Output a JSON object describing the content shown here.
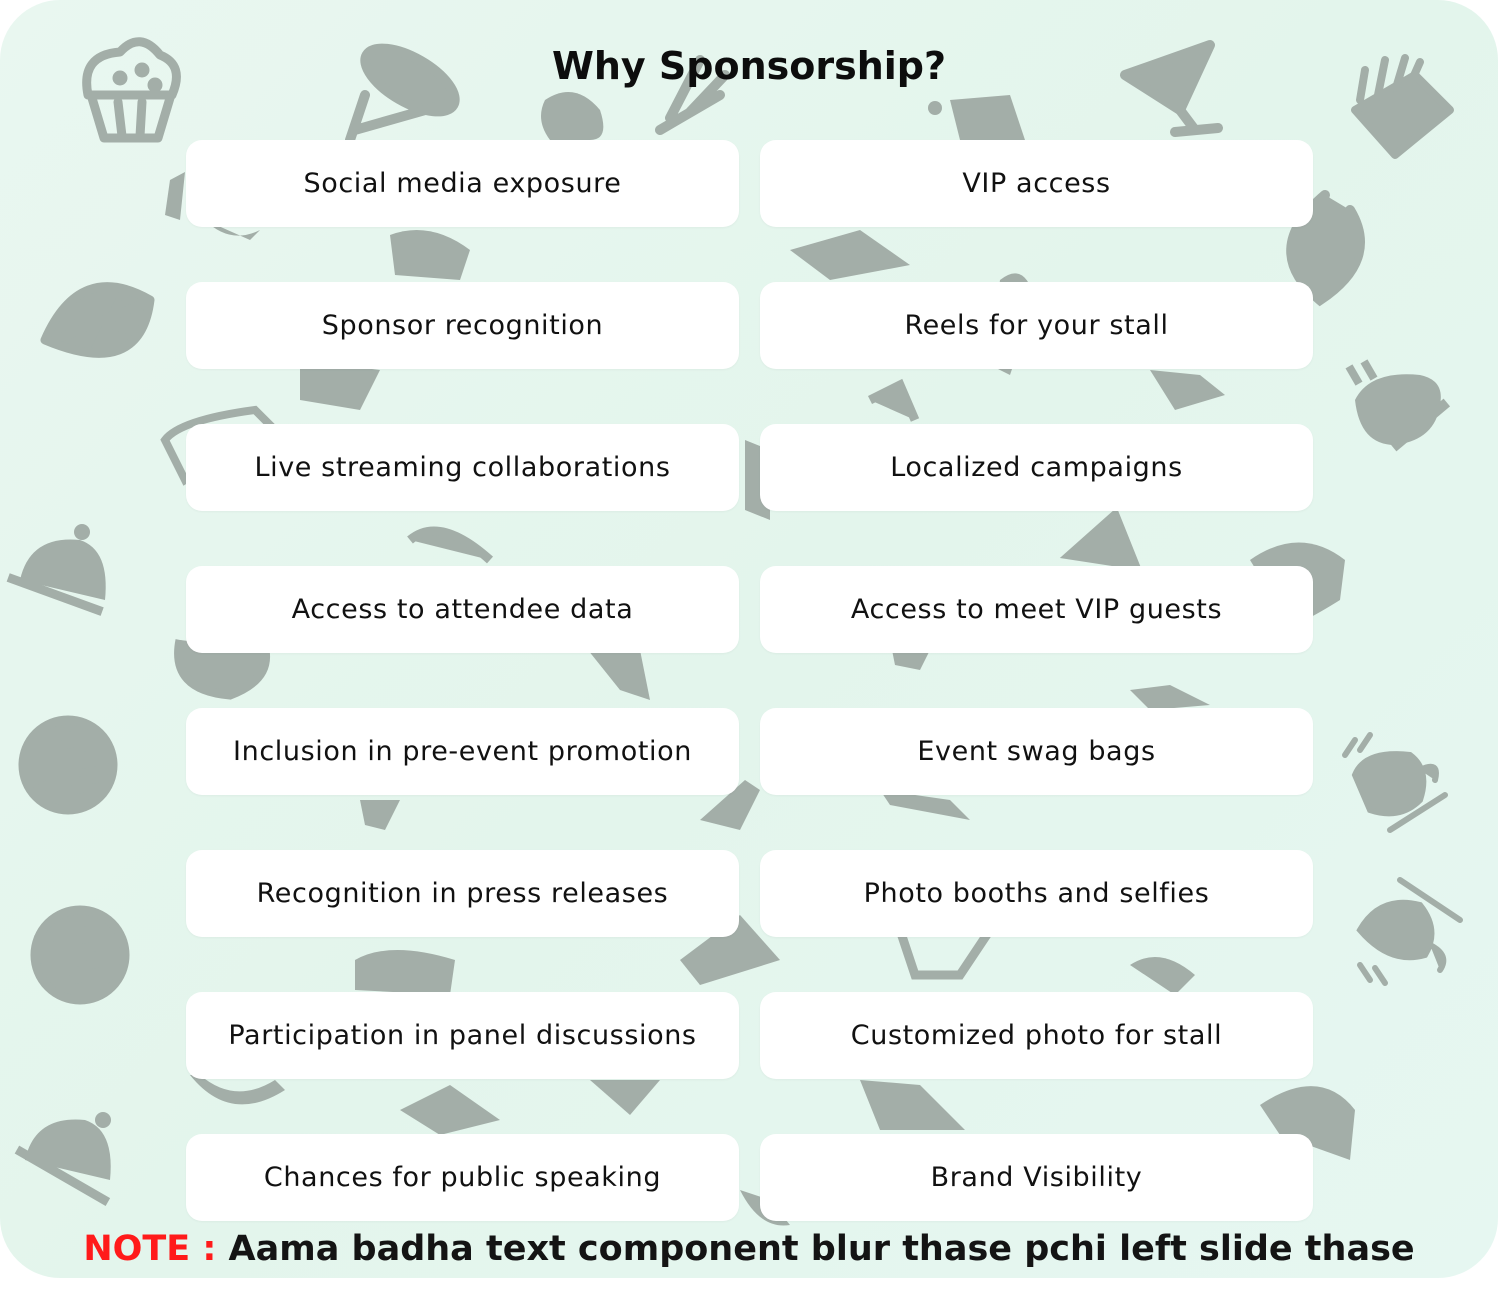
{
  "title": "Why Sponsorship?",
  "benefits": [
    [
      "Social media exposure",
      "VIP access"
    ],
    [
      "Sponsor recognition",
      "Reels for your stall"
    ],
    [
      "Live streaming collaborations",
      "Localized campaigns"
    ],
    [
      "Access to attendee data",
      "Access to meet VIP guests"
    ],
    [
      "Inclusion in pre-event promotion",
      "Event swag bags"
    ],
    [
      "Recognition in press releases",
      "Photo booths and selfies"
    ],
    [
      "Participation in panel discussions",
      "Customized photo for stall"
    ],
    [
      "Chances for public speaking",
      "Brand Visibility"
    ]
  ],
  "note": {
    "label": "NOTE : ",
    "text": "Aama badha text component blur thase pchi left slide thase"
  },
  "colors": {
    "background": "#e6f7ef",
    "doodle": "#a3aea8",
    "card": "#ffffff",
    "note_label": "#ff1a1a"
  },
  "background_icons": [
    "muffin-icon",
    "spoon-icon",
    "fork-icon",
    "cocktail-icon",
    "fries-icon",
    "lemon-slice-icon",
    "cloche-icon",
    "pizza-icon",
    "coffee-cup-icon",
    "burger-icon",
    "ice-cream-icon",
    "cheese-icon"
  ]
}
